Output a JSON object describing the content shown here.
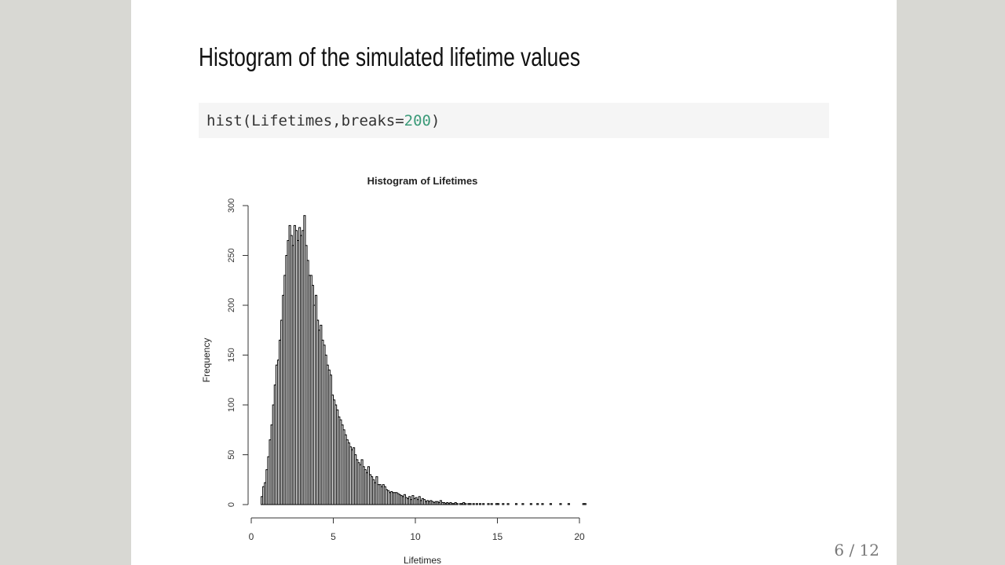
{
  "slide": {
    "title": "Histogram of the simulated lifetime values",
    "code": [
      "hist(Lifetimes,breaks=",
      "200",
      ")"
    ],
    "page": "6 / 12"
  },
  "chart_data": {
    "type": "histogram",
    "title": "Histogram of Lifetimes",
    "xlabel": "Lifetimes",
    "ylabel": "Frequency",
    "color": "#ffffff",
    "edgecolor": "#000000",
    "bins": [
      0.6,
      0.7,
      0.8,
      0.9,
      1,
      1.1,
      1.2,
      1.3,
      1.4,
      1.5,
      1.6,
      1.7,
      1.8,
      1.9,
      2,
      2.1,
      2.2,
      2.3,
      2.4,
      2.5,
      2.6,
      2.7,
      2.8,
      2.9,
      3,
      3.1,
      3.2,
      3.3,
      3.4,
      3.5,
      3.6,
      3.7,
      3.8,
      3.9,
      4,
      4.1,
      4.2,
      4.3,
      4.4,
      4.5,
      4.6,
      4.7,
      4.8,
      4.9,
      5,
      5.1,
      5.2,
      5.3,
      5.4,
      5.5,
      5.6,
      5.7,
      5.8,
      5.9,
      6,
      6.1,
      6.2,
      6.3,
      6.4,
      6.5,
      6.6,
      6.7,
      6.8,
      6.9,
      7,
      7.1,
      7.2,
      7.3,
      7.4,
      7.5,
      7.6,
      7.7,
      7.8,
      7.9,
      8,
      8.1,
      8.2,
      8.3,
      8.4,
      8.5,
      8.6,
      8.7,
      8.8,
      8.9,
      9,
      9.1,
      9.2,
      9.3,
      9.4,
      9.5,
      9.6,
      9.7,
      9.8,
      9.9,
      10,
      10.1,
      10.2,
      10.3,
      10.4,
      10.5,
      10.6,
      10.7,
      10.8,
      10.9,
      11,
      11.1,
      11.2,
      11.3,
      11.4,
      11.5,
      11.6,
      11.7,
      11.8,
      11.9,
      12,
      12.1,
      12.2,
      12.3,
      12.4,
      12.5,
      12.6,
      12.7,
      12.8,
      12.9,
      13,
      13.1,
      13.2,
      13.3,
      13.4,
      13.5,
      13.6,
      13.7,
      13.8,
      13.9,
      14,
      14.1,
      14.2,
      14.3,
      14.4,
      14.5,
      14.6,
      14.7,
      14.8,
      14.9,
      15,
      15.1,
      15.2,
      15.3,
      15.4,
      15.5,
      15.6,
      15.7,
      15.8,
      15.9,
      16,
      16.1,
      16.2,
      16.3,
      16.4,
      16.5,
      16.6,
      16.7,
      16.8,
      16.9,
      17,
      17.1,
      17.2,
      17.3,
      17.4,
      17.5,
      17.6,
      17.7,
      17.8,
      17.9,
      18,
      18.1,
      18.2,
      18.3,
      18.4,
      18.5,
      18.6,
      18.7,
      18.8,
      18.9,
      19,
      19.1,
      19.2,
      19.3,
      19.4,
      19.5,
      19.6,
      19.7,
      19.8,
      19.9,
      20,
      20.1,
      20.2,
      20.3,
      20.4
    ],
    "values": [
      8,
      18,
      22,
      35,
      48,
      65,
      80,
      100,
      120,
      140,
      145,
      165,
      185,
      210,
      230,
      250,
      265,
      280,
      270,
      260,
      280,
      275,
      265,
      278,
      270,
      275,
      290,
      260,
      245,
      230,
      230,
      220,
      200,
      210,
      185,
      175,
      180,
      165,
      160,
      150,
      140,
      135,
      130,
      110,
      105,
      100,
      95,
      88,
      85,
      80,
      75,
      70,
      65,
      62,
      58,
      55,
      57,
      50,
      45,
      42,
      40,
      45,
      38,
      35,
      32,
      38,
      30,
      28,
      25,
      22,
      28,
      20,
      20,
      18,
      20,
      18,
      15,
      14,
      12,
      13,
      12,
      12,
      12,
      11,
      10,
      9,
      8,
      10,
      7,
      6,
      8,
      5,
      9,
      6,
      7,
      5,
      8,
      4,
      6,
      5,
      3,
      4,
      3,
      4,
      3,
      2,
      3,
      3,
      2,
      4,
      2,
      2,
      1,
      2,
      1,
      2,
      1,
      1,
      2,
      1,
      0,
      1,
      1,
      2,
      1,
      0,
      1,
      1,
      0,
      1,
      0,
      1,
      0,
      1,
      0,
      1,
      0,
      0,
      1,
      0,
      1,
      0,
      0,
      1,
      1,
      0,
      0,
      1,
      0,
      0,
      1,
      0,
      0,
      0,
      0,
      1,
      0,
      0,
      0,
      1,
      0,
      0,
      0,
      0,
      1,
      0,
      0,
      0,
      1,
      0,
      0,
      1,
      0,
      0,
      0,
      0,
      1,
      0,
      0,
      0,
      0,
      0,
      1,
      0,
      0,
      0,
      0,
      1,
      0,
      0,
      0,
      0,
      0,
      0,
      0,
      0,
      1,
      1
    ],
    "xlim": [
      0,
      20
    ],
    "xticks": [
      0,
      5,
      10,
      15,
      20
    ],
    "ylim": [
      0,
      300
    ],
    "yticks": [
      0,
      50,
      100,
      150,
      200,
      250,
      300
    ]
  }
}
